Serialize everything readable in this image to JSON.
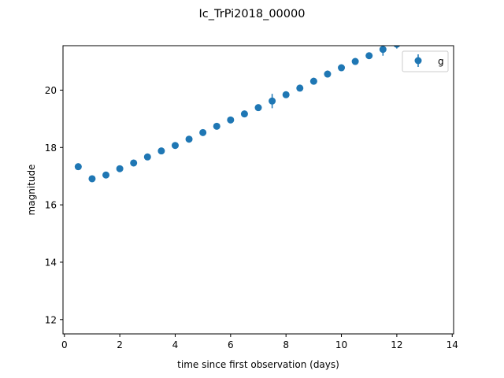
{
  "chart_data": {
    "type": "scatter",
    "title": "Ic_TrPi2018_00000",
    "xlabel": "time since first observation (days)",
    "ylabel": "magnitude",
    "xlim": [
      -0.05,
      14.05
    ],
    "ylim": [
      21.55,
      11.5
    ],
    "y_inverted": true,
    "xticks": [
      0,
      2,
      4,
      6,
      8,
      10,
      12,
      14
    ],
    "yticks": [
      12,
      14,
      16,
      18,
      20
    ],
    "grid": false,
    "legend": {
      "placement": "top-right",
      "entries": [
        "g"
      ]
    },
    "series": [
      {
        "name": "g",
        "color": "#1f77b4",
        "x": [
          0.5,
          1.0,
          1.5,
          2.0,
          2.5,
          3.0,
          3.5,
          4.0,
          4.5,
          5.0,
          5.5,
          6.0,
          6.5,
          7.0,
          7.5,
          8.0,
          8.5,
          9.0,
          9.5,
          10.0,
          10.5,
          11.0,
          11.5,
          12.0
        ],
        "y": [
          17.33,
          16.91,
          17.04,
          17.26,
          17.46,
          17.67,
          17.88,
          18.07,
          18.29,
          18.52,
          18.74,
          18.96,
          19.17,
          19.39,
          19.62,
          19.84,
          20.07,
          20.31,
          20.56,
          20.78,
          21.0,
          21.2,
          21.42,
          21.6
        ],
        "yerr": [
          0.04,
          0.04,
          0.04,
          0.04,
          0.04,
          0.04,
          0.04,
          0.04,
          0.04,
          0.04,
          0.06,
          0.07,
          0.06,
          0.08,
          0.25,
          0.06,
          0.06,
          0.12,
          0.12,
          0.06,
          0.1,
          0.08,
          0.22,
          0.15
        ]
      }
    ]
  }
}
